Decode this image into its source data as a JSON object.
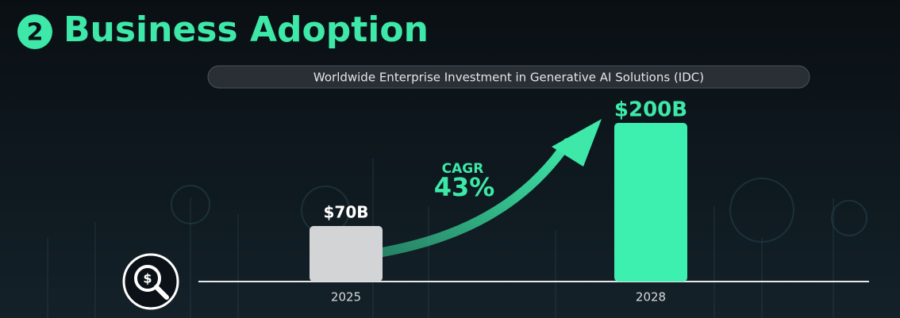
{
  "chart_data": {
    "type": "bar",
    "section_number": "2",
    "title": "Business Adoption",
    "subtitle": "Worldwide Enterprise Investment in Generative AI Solutions (IDC)",
    "categories": [
      "2025",
      "2028"
    ],
    "values": [
      70,
      200
    ],
    "value_labels": [
      "$70B",
      "$200B"
    ],
    "colors": [
      "#d2d4d6",
      "#3df0b0"
    ],
    "annotations": [
      "CAGR",
      "43%"
    ],
    "accent_color": "#3de8a8"
  }
}
